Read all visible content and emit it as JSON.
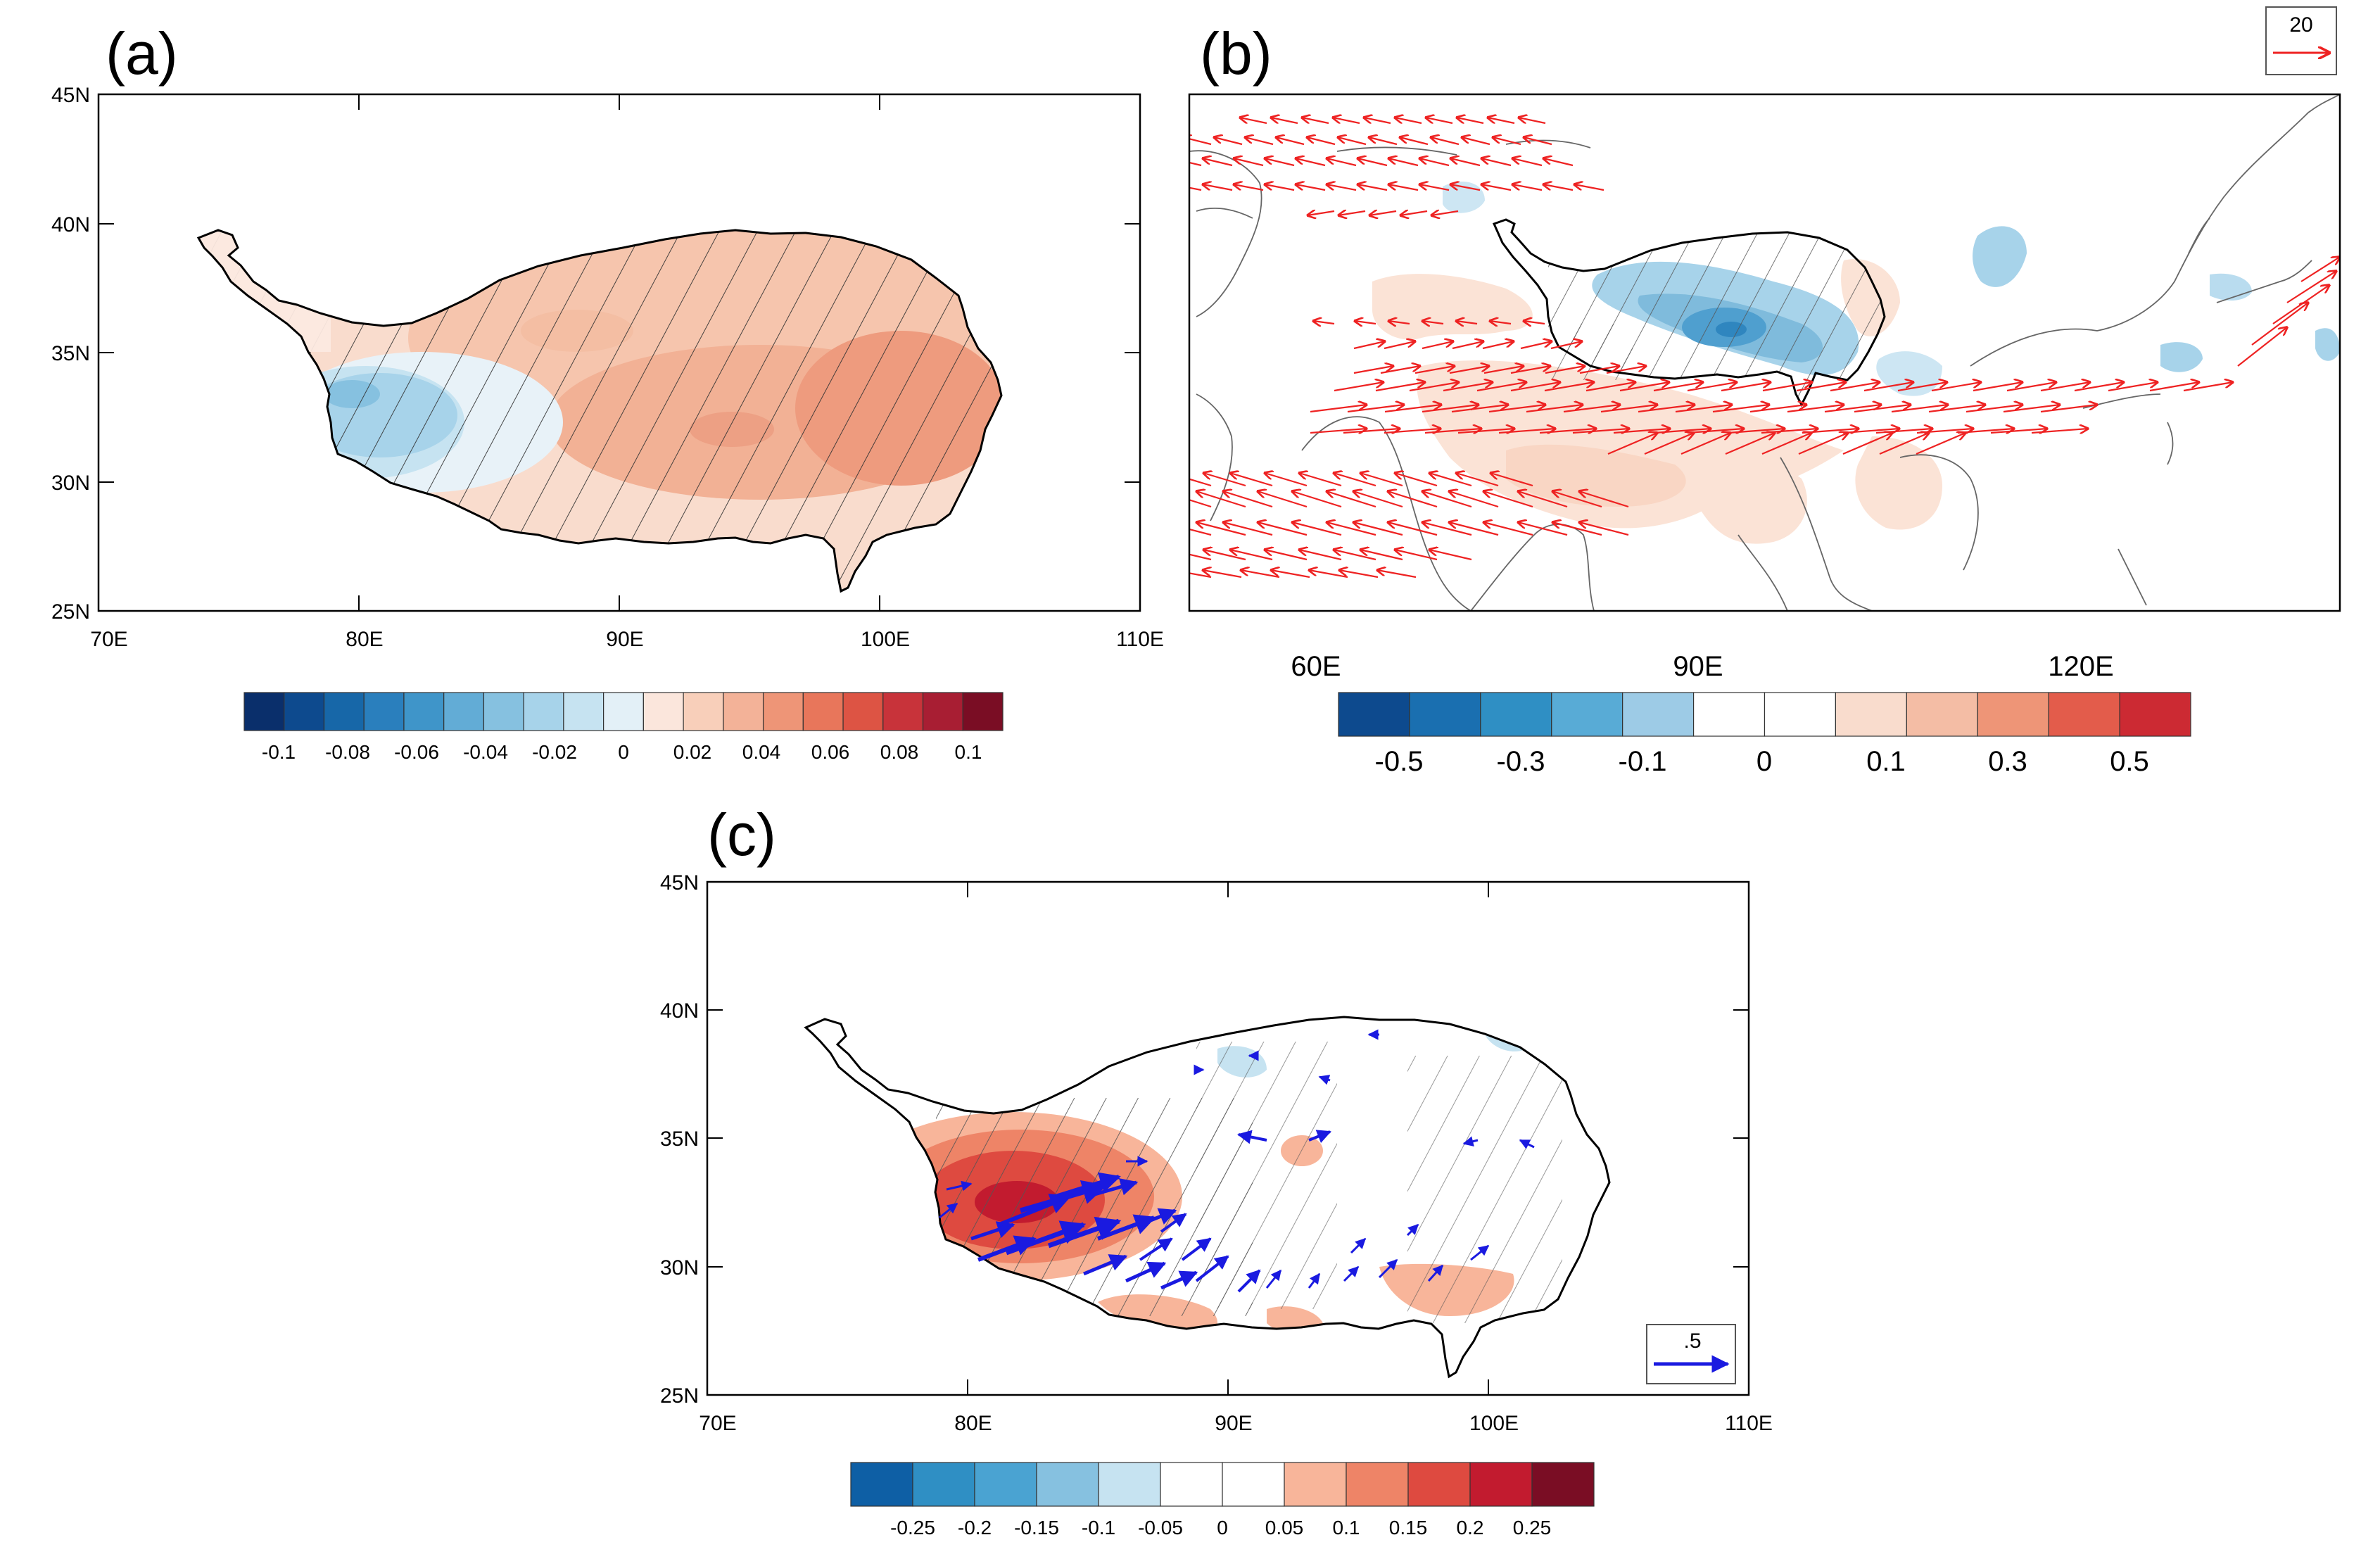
{
  "panel_a": {
    "label": "(a)",
    "lat_labels": [
      "45N",
      "40N",
      "35N",
      "30N",
      "25N"
    ],
    "lon_labels": [
      "70E",
      "80E",
      "90E",
      "100E",
      "110E"
    ],
    "colorbar": {
      "colors": [
        "#0a2f6b",
        "#0d4a8e",
        "#1767a8",
        "#2a7fbd",
        "#3f95c9",
        "#62acd6",
        "#86c1e0",
        "#a7d3ea",
        "#c6e3f1",
        "#e3f0f7",
        "#fbe6dc",
        "#f8cfba",
        "#f3b298",
        "#ee9577",
        "#e8765b",
        "#dd5444",
        "#c8333a",
        "#a81e33",
        "#7a0d24"
      ],
      "labels": [
        "-0.1",
        "-0.08",
        "-0.06",
        "-0.04",
        "-0.02",
        "0",
        "0.02",
        "0.04",
        "0.06",
        "0.08",
        "0.1"
      ]
    }
  },
  "panel_b": {
    "label": "(b)",
    "lon_labels": [
      "60E",
      "90E",
      "120E"
    ],
    "ref_vector_label": "20",
    "colorbar": {
      "colors": [
        "#0d4a8e",
        "#1a6fb0",
        "#2f8fc4",
        "#58abd6",
        "#9dcbe6",
        "#ffffff",
        "#ffffff",
        "#f9dccd",
        "#f4bda5",
        "#ee9577",
        "#e35c4b",
        "#cc2a33"
      ],
      "labels": [
        "-0.5",
        "-0.3",
        "-0.1",
        "0",
        "0.1",
        "0.3",
        "0.5"
      ]
    }
  },
  "panel_c": {
    "label": "(c)",
    "lat_labels": [
      "45N",
      "40N",
      "35N",
      "30N",
      "25N"
    ],
    "lon_labels": [
      "70E",
      "80E",
      "90E",
      "100E",
      "110E"
    ],
    "ref_vector_label": ".5",
    "colorbar": {
      "colors": [
        "#0e5fa5",
        "#2f8fc4",
        "#4aa3d2",
        "#86c1e0",
        "#c6e3f1",
        "#ffffff",
        "#ffffff",
        "#f8b59a",
        "#ee8467",
        "#de4a40",
        "#c21b2f",
        "#7a0d24"
      ],
      "labels": [
        "-0.25",
        "-0.2",
        "-0.15",
        "-0.1",
        "-0.05",
        "0",
        "0.05",
        "0.1",
        "0.15",
        "0.2",
        "0.25"
      ]
    }
  }
}
